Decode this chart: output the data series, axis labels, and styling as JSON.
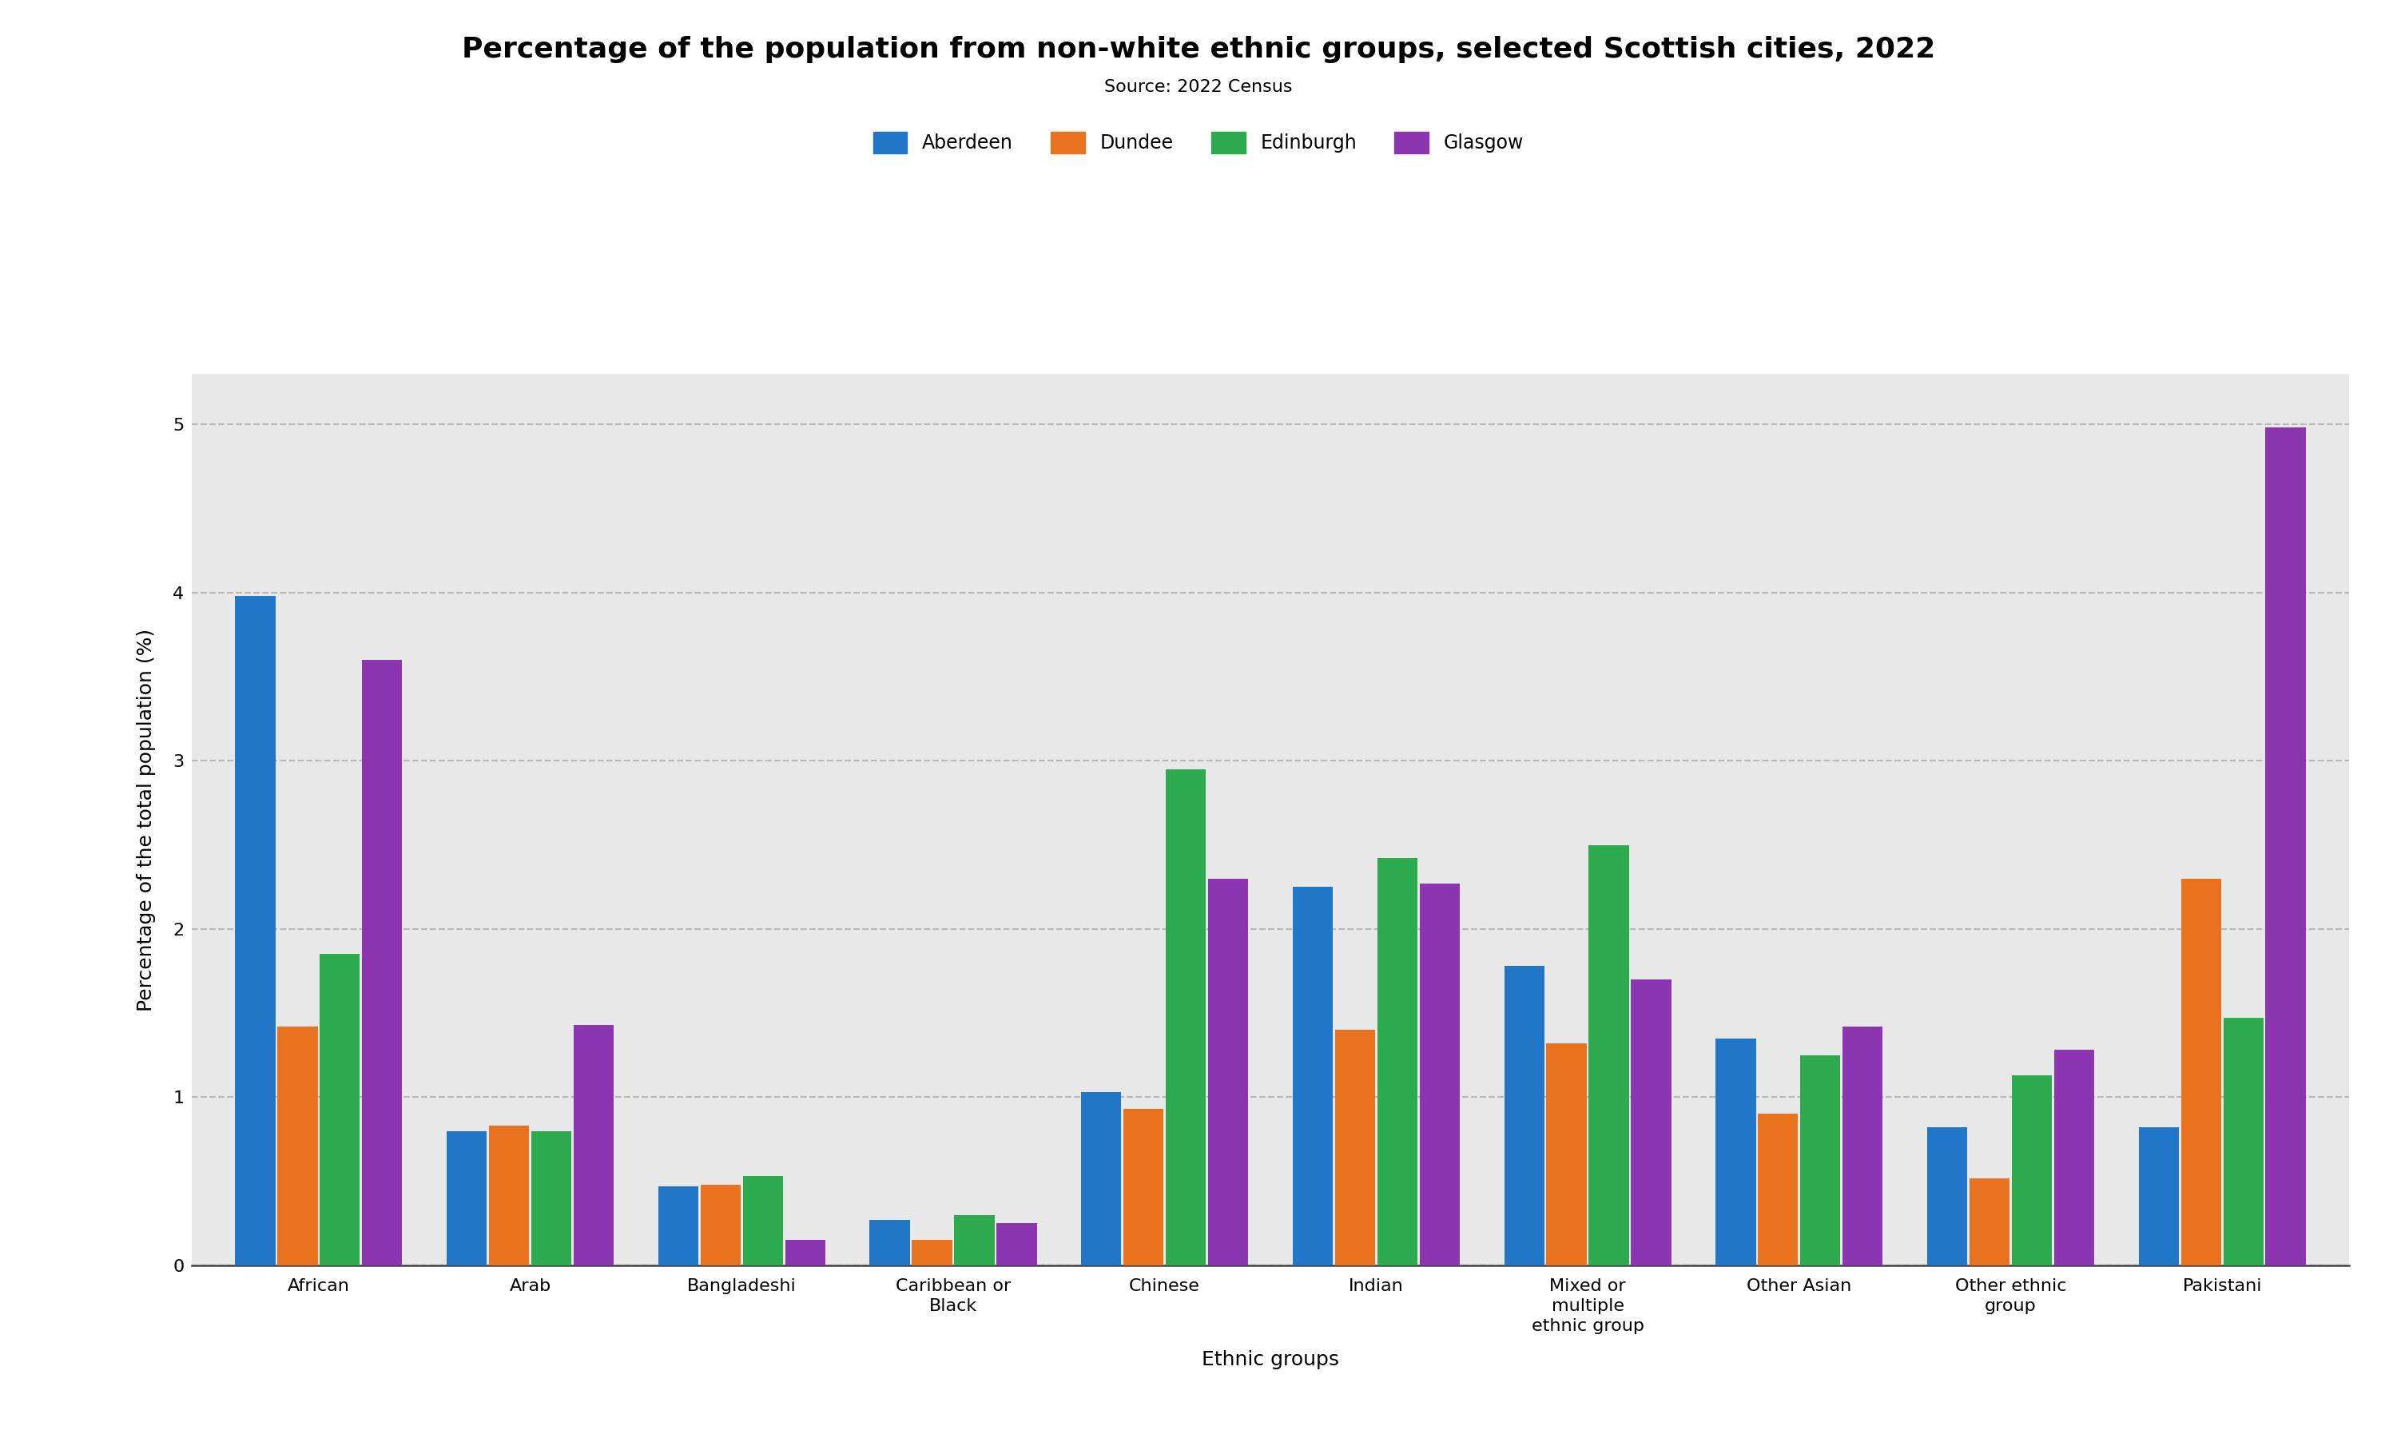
{
  "title": "Percentage of the population from non-white ethnic groups, selected Scottish cities, 2022",
  "subtitle": "Source: 2022 Census",
  "xlabel": "Ethnic groups",
  "ylabel": "Percentage of the total population (%)",
  "categories": [
    "African",
    "Arab",
    "Bangladeshi",
    "Caribbean or\nBlack",
    "Chinese",
    "Indian",
    "Mixed or\nmultiple\nethnic group",
    "Other Asian",
    "Other ethnic\ngroup",
    "Pakistani"
  ],
  "cities": [
    "Aberdeen",
    "Dundee",
    "Edinburgh",
    "Glasgow"
  ],
  "colors": [
    "#2176c8",
    "#e8721e",
    "#2daa4e",
    "#8b35b0"
  ],
  "values": {
    "Aberdeen": [
      3.98,
      0.8,
      0.47,
      0.27,
      1.03,
      2.25,
      1.78,
      1.35,
      0.82,
      0.82
    ],
    "Dundee": [
      1.42,
      0.83,
      0.48,
      0.15,
      0.93,
      1.4,
      1.32,
      0.9,
      0.52,
      2.3
    ],
    "Edinburgh": [
      1.85,
      0.8,
      0.53,
      0.3,
      2.95,
      2.42,
      2.5,
      1.25,
      1.13,
      1.47
    ],
    "Glasgow": [
      3.6,
      1.43,
      0.15,
      0.25,
      2.3,
      2.27,
      1.7,
      1.42,
      1.28,
      4.98
    ]
  },
  "ylim": [
    0,
    5.3
  ],
  "yticks": [
    0,
    1,
    2,
    3,
    4,
    5
  ],
  "background_color": "#e8e8e8",
  "title_fontsize": 26,
  "subtitle_fontsize": 16,
  "axis_label_fontsize": 18,
  "tick_fontsize": 16,
  "legend_fontsize": 17
}
